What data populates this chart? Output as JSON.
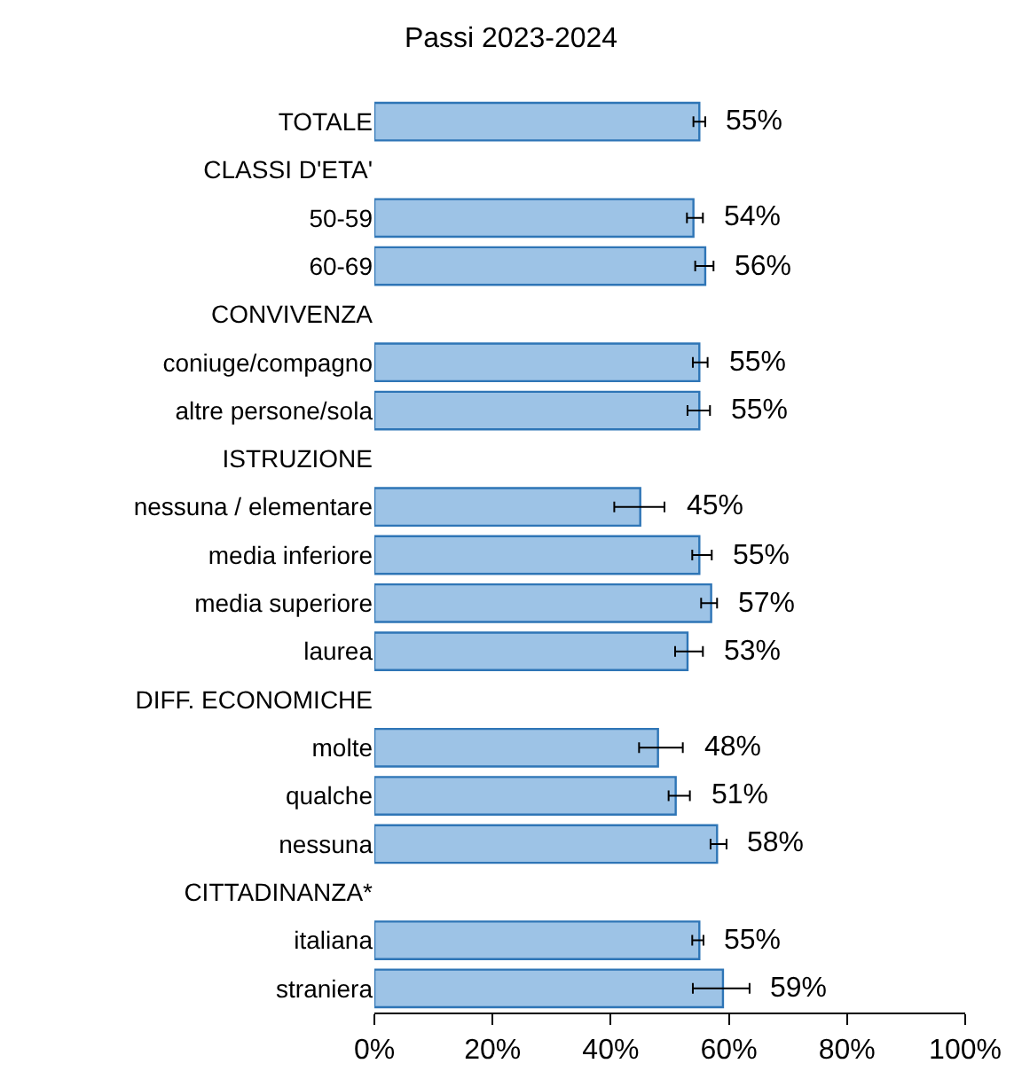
{
  "chart_data": {
    "type": "bar",
    "orientation": "horizontal",
    "title": "Passi 2023-2024",
    "categories": [
      "TOTALE",
      "CLASSI D'ETA'",
      "50-59",
      "60-69",
      "CONVIVENZA",
      "coniuge/compagno",
      "altre persone/sola",
      "ISTRUZIONE",
      "nessuna / elementare",
      "media inferiore",
      "media superiore",
      "laurea",
      "DIFF. ECONOMICHE",
      "molte",
      "qualche",
      "nessuna",
      "CITTADINANZA*",
      "italiana",
      "straniera"
    ],
    "values": [
      55,
      null,
      54,
      56,
      null,
      55,
      55,
      null,
      45,
      55,
      57,
      53,
      null,
      48,
      51,
      58,
      null,
      55,
      59
    ],
    "value_labels": [
      "55%",
      null,
      "54%",
      "56%",
      null,
      "55%",
      "55%",
      null,
      "45%",
      "55%",
      "57%",
      "53%",
      null,
      "48%",
      "51%",
      "58%",
      null,
      "55%",
      "59%"
    ],
    "errors": [
      [
        54,
        56
      ],
      null,
      [
        52.9,
        55.6
      ],
      [
        54.3,
        57.4
      ],
      null,
      [
        53.9,
        56.4
      ],
      [
        53,
        56.8
      ],
      null,
      [
        40.6,
        49.1
      ],
      [
        53.8,
        57.1
      ],
      [
        55.3,
        58
      ],
      [
        50.9,
        55.6
      ],
      null,
      [
        44.8,
        52.2
      ],
      [
        49.8,
        53.4
      ],
      [
        56.9,
        59.6
      ],
      null,
      [
        53.8,
        55.7
      ],
      [
        53.9,
        63.5
      ]
    ],
    "color": "#9dc3e6",
    "xlim": [
      0,
      100
    ],
    "xticks": [
      {
        "value": 0,
        "label": "0%"
      },
      {
        "value": 20,
        "label": "20%"
      },
      {
        "value": 40,
        "label": "40%"
      },
      {
        "value": 60,
        "label": "60%"
      },
      {
        "value": 80,
        "label": "80%"
      },
      {
        "value": 100,
        "label": "100%"
      }
    ],
    "legend": false
  }
}
